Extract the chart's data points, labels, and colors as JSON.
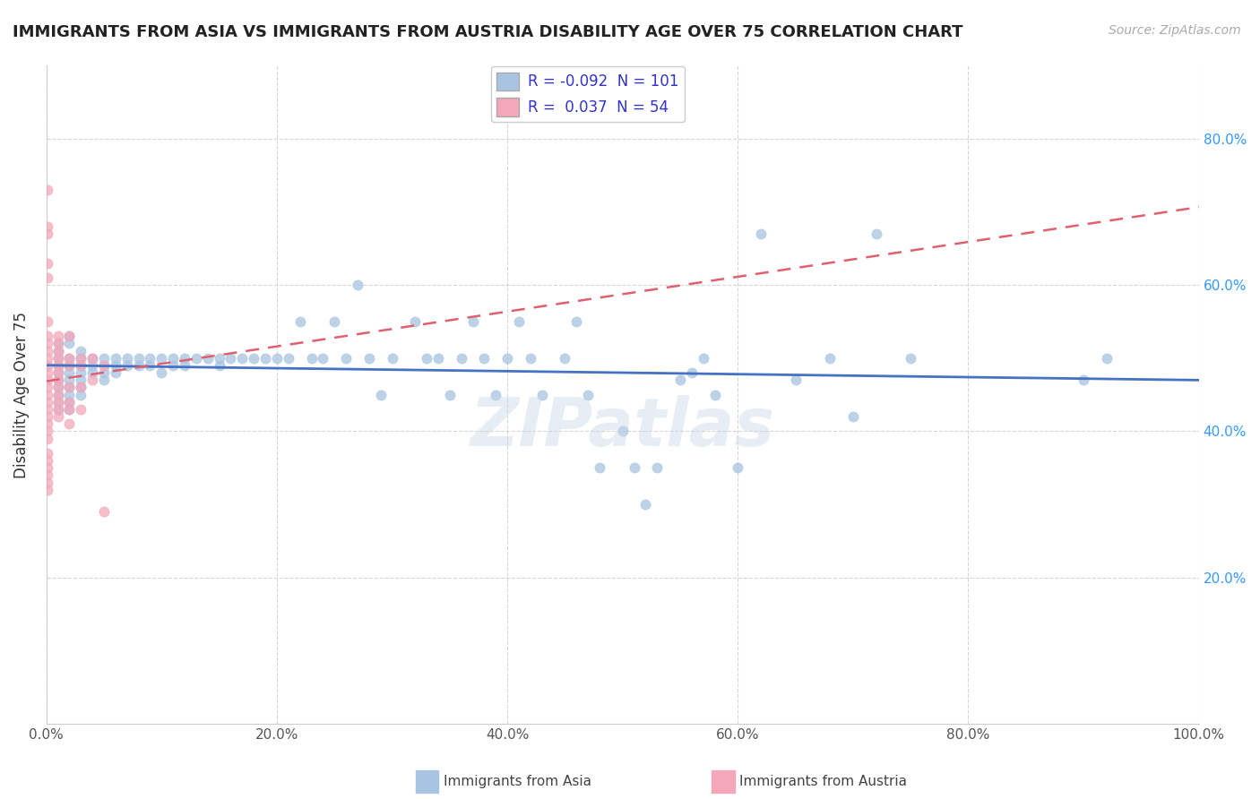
{
  "title": "IMMIGRANTS FROM ASIA VS IMMIGRANTS FROM AUSTRIA DISABILITY AGE OVER 75 CORRELATION CHART",
  "source": "Source: ZipAtlas.com",
  "ylabel": "Disability Age Over 75",
  "xlim": [
    0.0,
    1.0
  ],
  "ylim": [
    0.0,
    0.9
  ],
  "R_asia": -0.092,
  "N_asia": 101,
  "R_austria": 0.037,
  "N_austria": 54,
  "asia_color": "#a8c4e0",
  "austria_color": "#f4a7b9",
  "asia_line_color": "#4472c4",
  "austria_line_color": "#e06070",
  "watermark": "ZIPatlas",
  "legend_R_color": "#3333cc",
  "asia_x": [
    0.01,
    0.01,
    0.01,
    0.01,
    0.01,
    0.01,
    0.01,
    0.01,
    0.01,
    0.01,
    0.02,
    0.02,
    0.02,
    0.02,
    0.02,
    0.02,
    0.02,
    0.02,
    0.02,
    0.02,
    0.03,
    0.03,
    0.03,
    0.03,
    0.03,
    0.03,
    0.03,
    0.04,
    0.04,
    0.04,
    0.05,
    0.05,
    0.05,
    0.05,
    0.06,
    0.06,
    0.06,
    0.07,
    0.07,
    0.08,
    0.08,
    0.09,
    0.09,
    0.1,
    0.1,
    0.11,
    0.11,
    0.12,
    0.12,
    0.13,
    0.14,
    0.15,
    0.15,
    0.16,
    0.17,
    0.18,
    0.19,
    0.2,
    0.21,
    0.22,
    0.23,
    0.24,
    0.25,
    0.26,
    0.27,
    0.28,
    0.29,
    0.3,
    0.32,
    0.33,
    0.34,
    0.35,
    0.36,
    0.37,
    0.38,
    0.39,
    0.4,
    0.41,
    0.42,
    0.43,
    0.45,
    0.46,
    0.47,
    0.48,
    0.5,
    0.51,
    0.52,
    0.53,
    0.55,
    0.56,
    0.57,
    0.58,
    0.6,
    0.62,
    0.65,
    0.68,
    0.7,
    0.72,
    0.75,
    0.9,
    0.92
  ],
  "asia_y": [
    0.5,
    0.49,
    0.48,
    0.47,
    0.46,
    0.45,
    0.44,
    0.43,
    0.52,
    0.51,
    0.5,
    0.49,
    0.48,
    0.47,
    0.46,
    0.45,
    0.44,
    0.43,
    0.53,
    0.52,
    0.51,
    0.5,
    0.49,
    0.48,
    0.47,
    0.46,
    0.45,
    0.5,
    0.49,
    0.48,
    0.5,
    0.49,
    0.48,
    0.47,
    0.5,
    0.49,
    0.48,
    0.5,
    0.49,
    0.5,
    0.49,
    0.5,
    0.49,
    0.5,
    0.48,
    0.5,
    0.49,
    0.5,
    0.49,
    0.5,
    0.5,
    0.5,
    0.49,
    0.5,
    0.5,
    0.5,
    0.5,
    0.5,
    0.5,
    0.55,
    0.5,
    0.5,
    0.55,
    0.5,
    0.6,
    0.5,
    0.45,
    0.5,
    0.55,
    0.5,
    0.5,
    0.45,
    0.5,
    0.55,
    0.5,
    0.45,
    0.5,
    0.55,
    0.5,
    0.45,
    0.5,
    0.55,
    0.45,
    0.35,
    0.4,
    0.35,
    0.3,
    0.35,
    0.47,
    0.48,
    0.5,
    0.45,
    0.35,
    0.67,
    0.47,
    0.5,
    0.42,
    0.67,
    0.5,
    0.47,
    0.5
  ],
  "austria_x": [
    0.001,
    0.001,
    0.001,
    0.001,
    0.001,
    0.001,
    0.001,
    0.001,
    0.001,
    0.001,
    0.001,
    0.001,
    0.001,
    0.001,
    0.001,
    0.001,
    0.001,
    0.001,
    0.001,
    0.001,
    0.001,
    0.001,
    0.001,
    0.001,
    0.001,
    0.001,
    0.001,
    0.01,
    0.01,
    0.01,
    0.01,
    0.01,
    0.01,
    0.01,
    0.01,
    0.01,
    0.01,
    0.01,
    0.01,
    0.02,
    0.02,
    0.02,
    0.02,
    0.02,
    0.02,
    0.02,
    0.03,
    0.03,
    0.03,
    0.03,
    0.04,
    0.04,
    0.05,
    0.05
  ],
  "austria_y": [
    0.73,
    0.68,
    0.67,
    0.63,
    0.61,
    0.55,
    0.53,
    0.52,
    0.51,
    0.5,
    0.49,
    0.48,
    0.47,
    0.46,
    0.45,
    0.44,
    0.43,
    0.42,
    0.41,
    0.4,
    0.39,
    0.37,
    0.36,
    0.35,
    0.34,
    0.33,
    0.32,
    0.53,
    0.52,
    0.51,
    0.5,
    0.49,
    0.48,
    0.47,
    0.46,
    0.45,
    0.44,
    0.43,
    0.42,
    0.53,
    0.5,
    0.49,
    0.46,
    0.44,
    0.43,
    0.41,
    0.5,
    0.49,
    0.46,
    0.43,
    0.5,
    0.47,
    0.49,
    0.29
  ]
}
